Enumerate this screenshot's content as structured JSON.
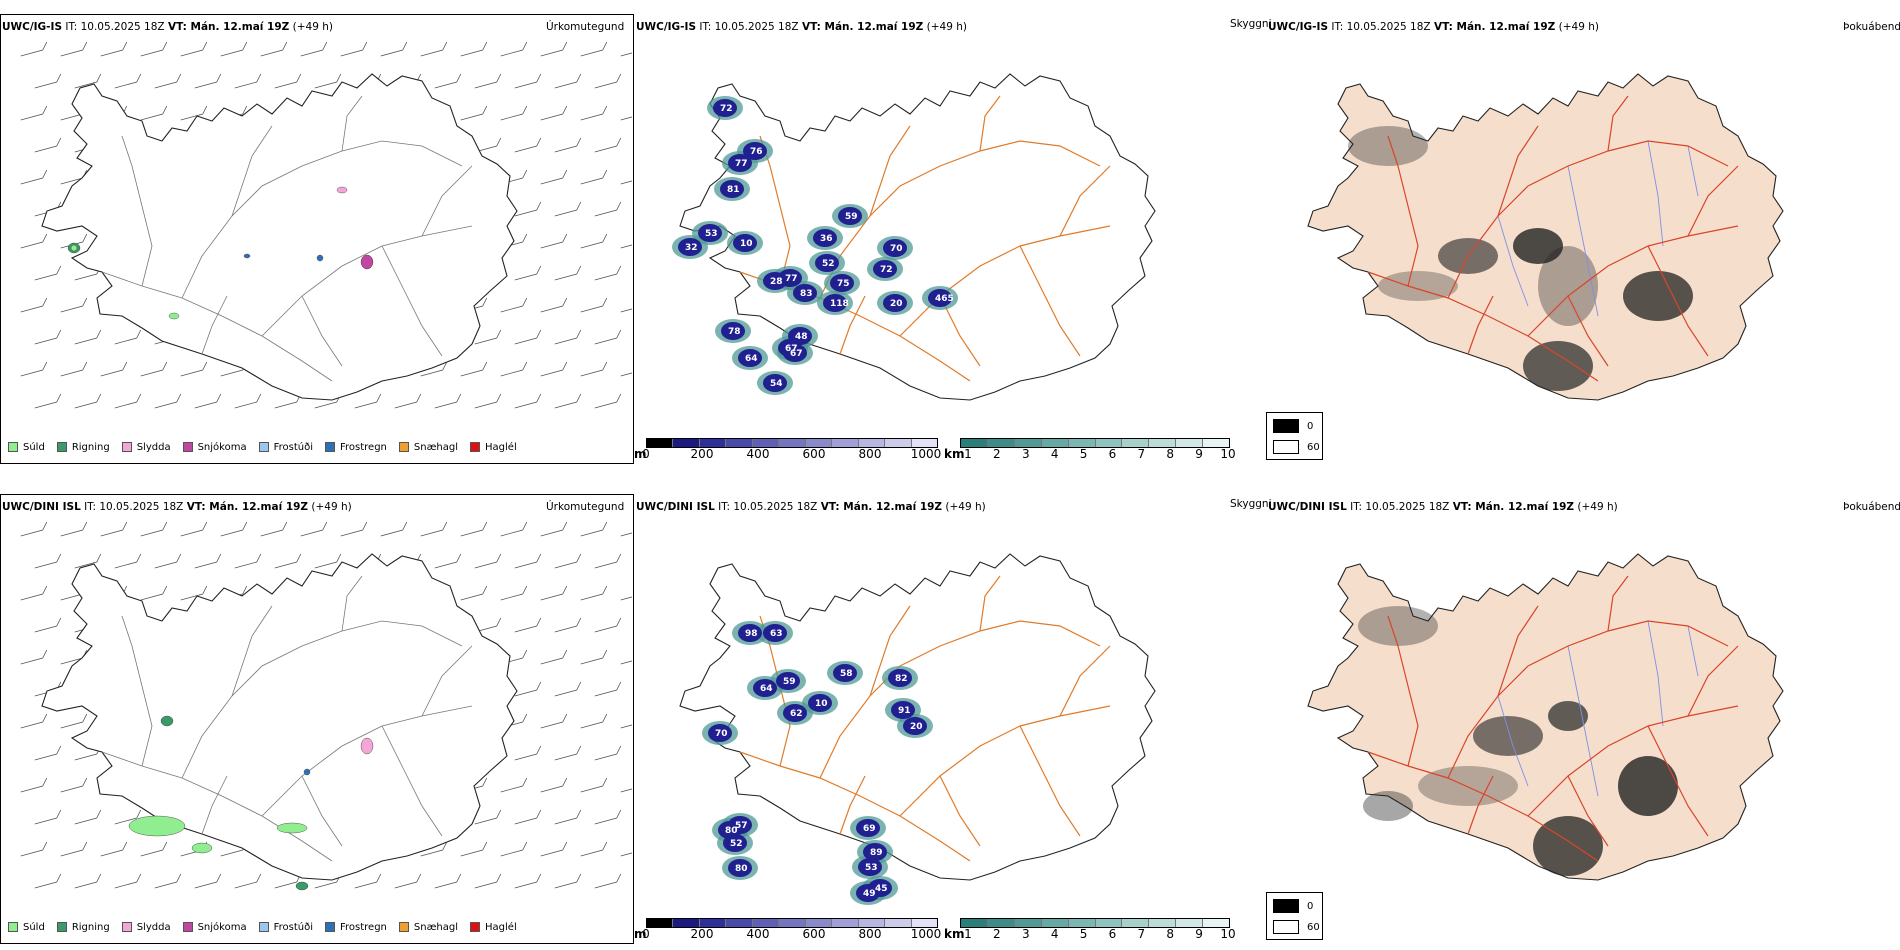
{
  "rows": [
    {
      "id": "top",
      "model_code": "UWC/IG-IS",
      "it_label": "IT: 10.05.2025 18Z",
      "vt_label": "VT: Mán. 12.maí 19Z",
      "lead": "(+49 h)",
      "left_title": "Úrkomutegund",
      "right_title": "Þokuábendi",
      "mid_right_label": "Skyggni",
      "cloud_labels": [
        "72",
        "76",
        "77",
        "81",
        "32",
        "10",
        "77",
        "52",
        "59",
        "36",
        "75",
        "118",
        "28",
        "83",
        "78",
        "67",
        "64",
        "54",
        "67",
        "48",
        "72",
        "465",
        "70",
        "53",
        "20"
      ]
    },
    {
      "id": "bottom",
      "model_code": "UWC/DINI ISL",
      "it_label": "IT: 10.05.2025 18Z",
      "vt_label": "VT: Mán. 12.maí 19Z",
      "lead": "(+49 h)",
      "left_title": "Úrkomutegund",
      "right_title": "Þokuábendi",
      "mid_right_label": "Skyggni",
      "cloud_labels": [
        "98",
        "63",
        "70",
        "64",
        "59",
        "58",
        "82",
        "91",
        "20",
        "69",
        "89",
        "53",
        "49",
        "45",
        "80",
        "80",
        "52",
        "57",
        "10",
        "62"
      ]
    }
  ],
  "precip_legend": [
    {
      "label": "Súld",
      "color": "#90ee90"
    },
    {
      "label": "Rigning",
      "color": "#3a9a6a"
    },
    {
      "label": "Slydda",
      "color": "#f4a6d7"
    },
    {
      "label": "Snjókoma",
      "color": "#c0479f"
    },
    {
      "label": "Frostúði",
      "color": "#9cc8f0"
    },
    {
      "label": "Frostregn",
      "color": "#2f6fb7"
    },
    {
      "label": "Snæhagl",
      "color": "#f0a030"
    },
    {
      "label": "Haglél",
      "color": "#e01010"
    }
  ],
  "cloudbase_scale": {
    "unit": "m",
    "ticks": [
      "0",
      "200",
      "400",
      "600",
      "800",
      "1000"
    ],
    "colors": [
      "#000000",
      "#1a1a80",
      "#2f2f9a",
      "#4a4aaa",
      "#5f5fb5",
      "#7474c0",
      "#8a8acb",
      "#a0a0d6",
      "#b6b6e0",
      "#ccccea",
      "#e2e2f4"
    ]
  },
  "visibility_scale": {
    "unit": "km",
    "ticks": [
      "1",
      "2",
      "3",
      "4",
      "5",
      "6",
      "7",
      "8",
      "9",
      "10"
    ],
    "colors": [
      "#2a7f7a",
      "#3d8c87",
      "#519a95",
      "#66a8a3",
      "#7bb6b1",
      "#90c3bf",
      "#a6d0cc",
      "#bcdcd9",
      "#d2e8e6",
      "#e8f4f3"
    ]
  },
  "fog_legend": [
    {
      "label": "0",
      "color": "#000000"
    },
    {
      "label": "60",
      "color": "#ffffff"
    }
  ],
  "colors": {
    "land_fill": "#f5dfcc",
    "roads_orange": "#e07b2a",
    "roads_red": "#d9452b",
    "rivers": "#7f8fe8",
    "cloud_dark": "#202090",
    "cloud_teal": "#4f9a96"
  }
}
